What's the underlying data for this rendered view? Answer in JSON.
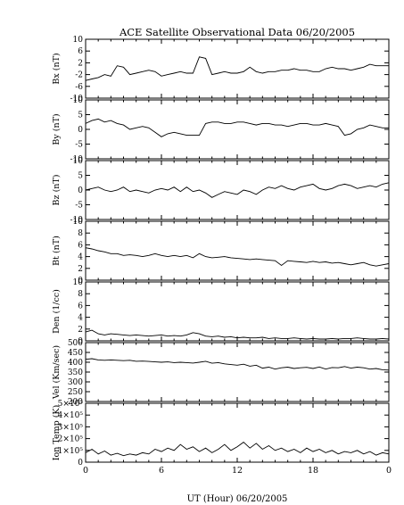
{
  "title": "ACE Satellite Observational Data   06/20/2005",
  "xlabel": "UT (Hour)   06/20/2005",
  "chart_data": [
    {
      "type": "line",
      "ylabel": "Bx (nT)",
      "ylim": [
        -10,
        10
      ],
      "yticks": [
        {
          "v": 10,
          "t": "10"
        },
        {
          "v": 6,
          "t": "6"
        },
        {
          "v": 2,
          "t": "2"
        },
        {
          "v": -2,
          "t": "-2"
        },
        {
          "v": -6,
          "t": "-6"
        },
        {
          "v": -10,
          "t": "-10"
        }
      ],
      "series": [
        {
          "x": [
            0,
            0.5,
            1,
            1.5,
            2,
            2.5,
            3,
            3.5,
            4,
            4.5,
            5,
            5.5,
            6,
            6.5,
            7,
            7.5,
            8,
            8.5,
            9,
            9.5,
            10,
            10.5,
            11,
            11.5,
            12,
            12.5,
            13,
            13.5,
            14,
            14.5,
            15,
            15.5,
            16,
            16.5,
            17,
            17.5,
            18,
            18.5,
            19,
            19.5,
            20,
            20.5,
            21,
            21.5,
            22,
            22.5,
            23,
            23.5,
            24
          ],
          "y": [
            -4,
            -3.5,
            -3,
            -2,
            -2.5,
            1,
            0.5,
            -2,
            -1.5,
            -1,
            -0.5,
            -1,
            -2.5,
            -2,
            -1.5,
            -1,
            -1.5,
            -1.5,
            4,
            3.5,
            -2,
            -1.5,
            -1,
            -1.5,
            -1.5,
            -1,
            0.5,
            -1,
            -1.5,
            -1,
            -1,
            -0.5,
            -0.5,
            0,
            -0.5,
            -0.5,
            -1,
            -1,
            0,
            0.5,
            0,
            0,
            -0.5,
            0,
            0.5,
            1.5,
            1,
            1,
            1
          ]
        }
      ]
    },
    {
      "type": "line",
      "ylabel": "By (nT)",
      "ylim": [
        -10,
        10
      ],
      "yticks": [
        {
          "v": 10,
          "t": "10"
        },
        {
          "v": 5,
          "t": "5"
        },
        {
          "v": 0,
          "t": "0"
        },
        {
          "v": -5,
          "t": "-5"
        },
        {
          "v": -10,
          "t": "-10"
        }
      ],
      "series": [
        {
          "x": [
            0,
            0.5,
            1,
            1.5,
            2,
            2.5,
            3,
            3.5,
            4,
            4.5,
            5,
            5.5,
            6,
            6.5,
            7,
            7.5,
            8,
            8.5,
            9,
            9.5,
            10,
            10.5,
            11,
            11.5,
            12,
            12.5,
            13,
            13.5,
            14,
            14.5,
            15,
            15.5,
            16,
            16.5,
            17,
            17.5,
            18,
            18.5,
            19,
            19.5,
            20,
            20.5,
            21,
            21.5,
            22,
            22.5,
            23,
            23.5,
            24
          ],
          "y": [
            2,
            3,
            3.5,
            2.5,
            3,
            2,
            1.5,
            0,
            0.5,
            1,
            0.5,
            -1,
            -2.5,
            -1.5,
            -1,
            -1.5,
            -2,
            -2,
            -2,
            2,
            2.5,
            2.5,
            2,
            2,
            2.5,
            2.5,
            2,
            1.5,
            2,
            2,
            1.5,
            1.5,
            1,
            1.5,
            2,
            2,
            1.5,
            1.5,
            2,
            1.5,
            1,
            -2,
            -1.5,
            0,
            0.5,
            1.5,
            1,
            0.5,
            0.5
          ]
        }
      ]
    },
    {
      "type": "line",
      "ylabel": "Bz (nT)",
      "ylim": [
        -10,
        10
      ],
      "yticks": [
        {
          "v": 10,
          "t": "10"
        },
        {
          "v": 5,
          "t": "5"
        },
        {
          "v": 0,
          "t": "0"
        },
        {
          "v": -5,
          "t": "-5"
        },
        {
          "v": -10,
          "t": "-10"
        }
      ],
      "series": [
        {
          "x": [
            0,
            0.5,
            1,
            1.5,
            2,
            2.5,
            3,
            3.5,
            4,
            4.5,
            5,
            5.5,
            6,
            6.5,
            7,
            7.5,
            8,
            8.5,
            9,
            9.5,
            10,
            10.5,
            11,
            11.5,
            12,
            12.5,
            13,
            13.5,
            14,
            14.5,
            15,
            15.5,
            16,
            16.5,
            17,
            17.5,
            18,
            18.5,
            19,
            19.5,
            20,
            20.5,
            21,
            21.5,
            22,
            22.5,
            23,
            23.5,
            24
          ],
          "y": [
            0,
            0.5,
            1,
            0,
            -0.5,
            0,
            1,
            -0.5,
            0,
            -0.5,
            -1,
            0,
            0.5,
            0,
            1,
            -0.5,
            1,
            -0.5,
            0,
            -1,
            -2.5,
            -1.5,
            -0.5,
            -1,
            -1.5,
            0,
            -0.5,
            -1.5,
            0,
            1,
            0.5,
            1.5,
            0.5,
            0,
            1,
            1.5,
            2,
            0.5,
            0,
            0.5,
            1.5,
            2,
            1.5,
            0.5,
            1,
            1.5,
            1,
            2,
            2.5
          ]
        }
      ]
    },
    {
      "type": "line",
      "ylabel": "Bt (nT)",
      "ylim": [
        0,
        10
      ],
      "yticks": [
        {
          "v": 10,
          "t": "10"
        },
        {
          "v": 8,
          "t": "8"
        },
        {
          "v": 6,
          "t": "6"
        },
        {
          "v": 4,
          "t": "4"
        },
        {
          "v": 2,
          "t": "2"
        },
        {
          "v": 0,
          "t": "0"
        }
      ],
      "series": [
        {
          "x": [
            0,
            0.5,
            1,
            1.5,
            2,
            2.5,
            3,
            3.5,
            4,
            4.5,
            5,
            5.5,
            6,
            6.5,
            7,
            7.5,
            8,
            8.5,
            9,
            9.5,
            10,
            10.5,
            11,
            11.5,
            12,
            12.5,
            13,
            13.5,
            14,
            14.5,
            15,
            15.5,
            16,
            16.5,
            17,
            17.5,
            18,
            18.5,
            19,
            19.5,
            20,
            20.5,
            21,
            21.5,
            22,
            22.5,
            23,
            23.5,
            24
          ],
          "y": [
            5.5,
            5.3,
            5,
            4.8,
            4.5,
            4.5,
            4.2,
            4.3,
            4.2,
            4,
            4.2,
            4.5,
            4.2,
            4,
            4.2,
            4,
            4.2,
            3.8,
            4.5,
            4,
            3.8,
            3.9,
            4,
            3.8,
            3.7,
            3.6,
            3.5,
            3.6,
            3.5,
            3.4,
            3.3,
            2.5,
            3.3,
            3.2,
            3.1,
            3,
            3.2,
            3,
            3.1,
            2.9,
            3,
            2.8,
            2.6,
            2.8,
            3,
            2.6,
            2.4,
            2.6,
            2.8
          ]
        }
      ]
    },
    {
      "type": "line",
      "ylabel": "Den (1/cc)",
      "ylim": [
        0,
        10
      ],
      "yticks": [
        {
          "v": 10,
          "t": "10"
        },
        {
          "v": 8,
          "t": "8"
        },
        {
          "v": 6,
          "t": "6"
        },
        {
          "v": 4,
          "t": "4"
        },
        {
          "v": 2,
          "t": "2"
        },
        {
          "v": 0,
          "t": "0"
        }
      ],
      "series": [
        {
          "x": [
            0,
            0.5,
            1,
            1.5,
            2,
            2.5,
            3,
            3.5,
            4,
            4.5,
            5,
            5.5,
            6,
            6.5,
            7,
            7.5,
            8,
            8.5,
            9,
            9.5,
            10,
            10.5,
            11,
            11.5,
            12,
            12.5,
            13,
            13.5,
            14,
            14.5,
            15,
            15.5,
            16,
            16.5,
            17,
            17.5,
            18,
            18.5,
            19,
            19.5,
            20,
            20.5,
            21,
            21.5,
            22,
            22.5,
            23,
            23.5,
            24
          ],
          "y": [
            1.5,
            1.8,
            1.2,
            1,
            1.2,
            1.1,
            1,
            0.9,
            1,
            0.9,
            0.8,
            0.9,
            1,
            0.8,
            0.9,
            0.8,
            1,
            1.4,
            1.2,
            0.8,
            0.7,
            0.8,
            0.6,
            0.7,
            0.5,
            0.6,
            0.5,
            0.5,
            0.6,
            0.4,
            0.5,
            0.4,
            0.4,
            0.5,
            0.4,
            0.3,
            0.4,
            0.3,
            0.3,
            0.4,
            0.3,
            0.4,
            0.4,
            0.5,
            0.4,
            0.3,
            0.3,
            0.4,
            0.3
          ]
        }
      ]
    },
    {
      "type": "line",
      "ylabel": "Vel (Km/sec)",
      "ylim": [
        200,
        500
      ],
      "yticks": [
        {
          "v": 500,
          "t": "500"
        },
        {
          "v": 450,
          "t": "450"
        },
        {
          "v": 400,
          "t": "400"
        },
        {
          "v": 350,
          "t": "350"
        },
        {
          "v": 300,
          "t": "300"
        },
        {
          "v": 250,
          "t": "250"
        },
        {
          "v": 200,
          "t": "200"
        }
      ],
      "series": [
        {
          "x": [
            0,
            0.5,
            1,
            1.5,
            2,
            2.5,
            3,
            3.5,
            4,
            4.5,
            5,
            5.5,
            6,
            6.5,
            7,
            7.5,
            8,
            8.5,
            9,
            9.5,
            10,
            10.5,
            11,
            11.5,
            12,
            12.5,
            13,
            13.5,
            14,
            14.5,
            15,
            15.5,
            16,
            16.5,
            17,
            17.5,
            18,
            18.5,
            19,
            19.5,
            20,
            20.5,
            21,
            21.5,
            22,
            22.5,
            23,
            23.5,
            24
          ],
          "y": [
            415,
            418,
            412,
            410,
            412,
            410,
            408,
            410,
            405,
            406,
            404,
            402,
            400,
            402,
            398,
            400,
            398,
            396,
            400,
            405,
            395,
            398,
            392,
            388,
            385,
            390,
            380,
            385,
            370,
            375,
            365,
            372,
            375,
            368,
            372,
            374,
            368,
            376,
            365,
            373,
            372,
            378,
            370,
            375,
            372,
            365,
            368,
            362,
            360
          ]
        }
      ]
    },
    {
      "type": "line",
      "ylabel": "Ion Temp (K)",
      "ylim": [
        0,
        500000
      ],
      "yticks": [
        {
          "v": 500000,
          "t": "5×10⁵"
        },
        {
          "v": 400000,
          "t": "4×10⁵"
        },
        {
          "v": 300000,
          "t": "3×10⁵"
        },
        {
          "v": 200000,
          "t": "2×10⁵"
        },
        {
          "v": 100000,
          "t": "1×10⁵"
        },
        {
          "v": 0,
          "t": "0"
        }
      ],
      "series": [
        {
          "x": [
            0,
            0.5,
            1,
            1.5,
            2,
            2.5,
            3,
            3.5,
            4,
            4.5,
            5,
            5.5,
            6,
            6.5,
            7,
            7.5,
            8,
            8.5,
            9,
            9.5,
            10,
            10.5,
            11,
            11.5,
            12,
            12.5,
            13,
            13.5,
            14,
            14.5,
            15,
            15.5,
            16,
            16.5,
            17,
            17.5,
            18,
            18.5,
            19,
            19.5,
            20,
            20.5,
            21,
            21.5,
            22,
            22.5,
            23,
            23.5,
            24
          ],
          "y": [
            80000,
            110000,
            70000,
            95000,
            60000,
            75000,
            55000,
            70000,
            60000,
            80000,
            70000,
            110000,
            90000,
            120000,
            100000,
            150000,
            110000,
            130000,
            90000,
            120000,
            80000,
            110000,
            150000,
            100000,
            130000,
            170000,
            120000,
            160000,
            110000,
            140000,
            100000,
            120000,
            90000,
            110000,
            80000,
            120000,
            90000,
            110000,
            80000,
            100000,
            70000,
            90000,
            80000,
            100000,
            70000,
            90000,
            60000,
            80000,
            70000
          ]
        }
      ]
    }
  ],
  "xaxis": {
    "xlim": [
      0,
      24
    ],
    "ticks": [
      {
        "v": 0,
        "t": "0"
      },
      {
        "v": 6,
        "t": "6"
      },
      {
        "v": 12,
        "t": "12"
      },
      {
        "v": 18,
        "t": "18"
      },
      {
        "v": 24,
        "t": "0"
      }
    ]
  }
}
